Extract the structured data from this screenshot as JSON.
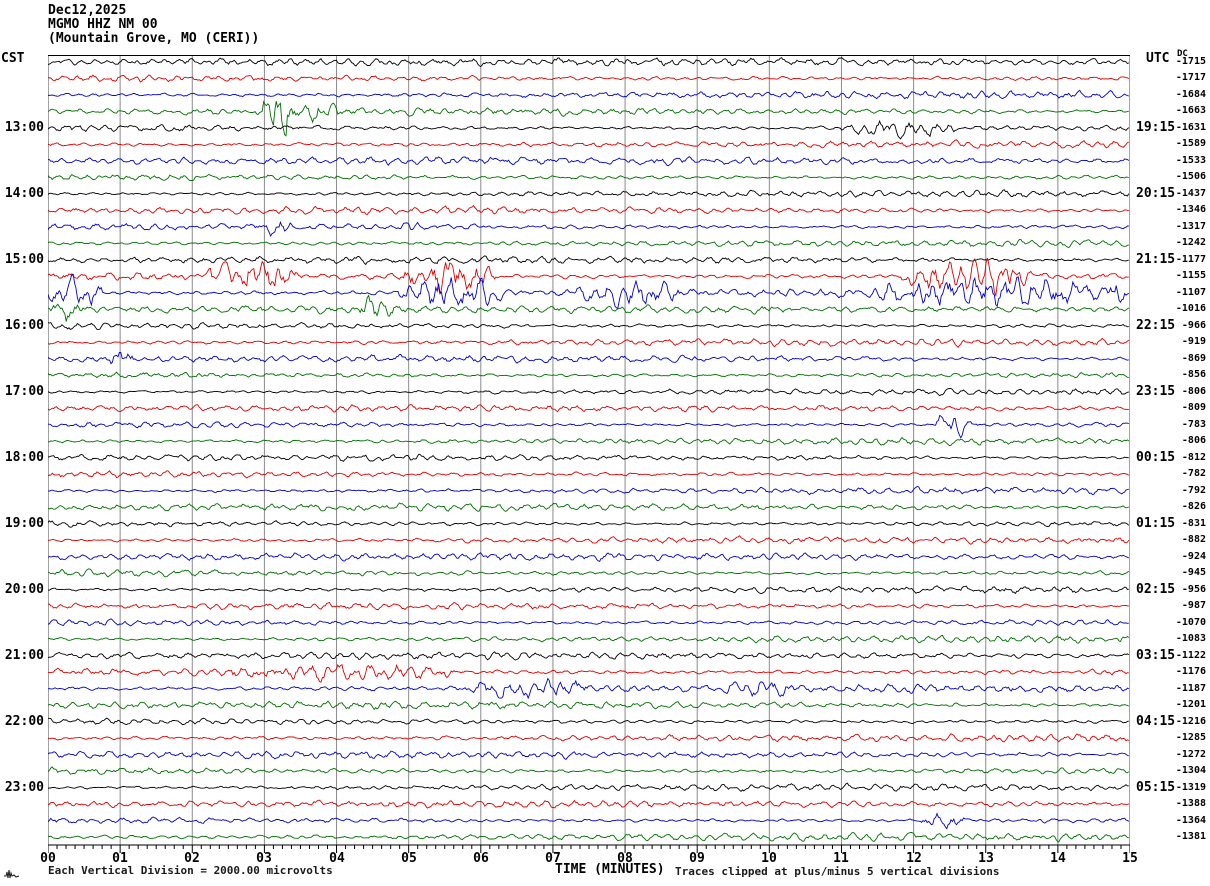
{
  "header": {
    "date": "Dec12,2025",
    "station": "MGMO HHZ NM 00",
    "location": "(Mountain Grove, MO (CERI))"
  },
  "axes": {
    "left_tz": "CST",
    "right_tz": "UTC",
    "dc_label": "DC",
    "x_title": "TIME (MINUTES)",
    "x_tick_labels": [
      "00",
      "01",
      "02",
      "03",
      "04",
      "05",
      "06",
      "07",
      "08",
      "09",
      "10",
      "11",
      "12",
      "13",
      "14",
      "15"
    ],
    "left_hour_labels": [
      {
        "row": 4,
        "label": "13:00"
      },
      {
        "row": 8,
        "label": "14:00"
      },
      {
        "row": 12,
        "label": "15:00"
      },
      {
        "row": 16,
        "label": "16:00"
      },
      {
        "row": 20,
        "label": "17:00"
      },
      {
        "row": 24,
        "label": "18:00"
      },
      {
        "row": 28,
        "label": "19:00"
      },
      {
        "row": 32,
        "label": "20:00"
      },
      {
        "row": 36,
        "label": "21:00"
      },
      {
        "row": 40,
        "label": "22:00"
      },
      {
        "row": 44,
        "label": "23:00"
      }
    ],
    "right_hour_labels": [
      {
        "row": 4,
        "label": "19:15"
      },
      {
        "row": 8,
        "label": "20:15"
      },
      {
        "row": 12,
        "label": "21:15"
      },
      {
        "row": 16,
        "label": "22:15"
      },
      {
        "row": 20,
        "label": "23:15"
      },
      {
        "row": 24,
        "label": "00:15"
      },
      {
        "row": 28,
        "label": "01:15"
      },
      {
        "row": 32,
        "label": "02:15"
      },
      {
        "row": 36,
        "label": "03:15"
      },
      {
        "row": 40,
        "label": "04:15"
      },
      {
        "row": 44,
        "label": "05:15"
      }
    ]
  },
  "footer": {
    "scale_note": "Each Vertical Division = 2000.00 microvolts",
    "clip_note": "Traces clipped at plus/minus 5 vertical divisions"
  },
  "colors": {
    "trace_cycle": [
      "#000000",
      "#e00000",
      "#0000d0",
      "#007000"
    ],
    "grid": "#8a8a8a",
    "border": "#444444",
    "squiggle": "#1a1a1a"
  },
  "chart_data": {
    "type": "line",
    "subtype": "helicorder-seismogram",
    "x_range_minutes": [
      0,
      15
    ],
    "minutes_per_row": 15,
    "rows_per_hour": 4,
    "start_time_cst": "12:00",
    "minor_ticks_per_minute": 8,
    "clip_divisions": 5,
    "microvolts_per_division": 2000.0,
    "rows": [
      {
        "cst": "",
        "utc": "",
        "value": -1715,
        "color": "black",
        "amp": 3.5,
        "events": []
      },
      {
        "cst": "",
        "utc": "",
        "value": -1717,
        "color": "red",
        "amp": 3.5,
        "events": []
      },
      {
        "cst": "",
        "utc": "",
        "value": -1684,
        "color": "blue",
        "amp": 3.4,
        "events": []
      },
      {
        "cst": "",
        "utc": "",
        "value": -1663,
        "color": "green",
        "amp": 3.2,
        "events": [
          [
            2.95,
            3.45,
            24
          ],
          [
            3.45,
            4.1,
            7
          ]
        ]
      },
      {
        "cst": "13:00",
        "utc": "19:15",
        "value": -1631,
        "color": "black",
        "amp": 3.2,
        "events": [
          [
            10.9,
            12.6,
            5
          ]
        ]
      },
      {
        "cst": "",
        "utc": "",
        "value": -1589,
        "color": "red",
        "amp": 3.5,
        "events": []
      },
      {
        "cst": "",
        "utc": "",
        "value": -1533,
        "color": "blue",
        "amp": 3.5,
        "events": []
      },
      {
        "cst": "",
        "utc": "",
        "value": -1506,
        "color": "green",
        "amp": 3.2,
        "events": []
      },
      {
        "cst": "14:00",
        "utc": "20:15",
        "value": -1437,
        "color": "black",
        "amp": 3.0,
        "events": []
      },
      {
        "cst": "",
        "utc": "",
        "value": -1346,
        "color": "red",
        "amp": 3.2,
        "events": []
      },
      {
        "cst": "",
        "utc": "",
        "value": -1317,
        "color": "blue",
        "amp": 3.4,
        "events": [
          [
            3.0,
            3.4,
            7
          ],
          [
            4.9,
            5.15,
            5
          ]
        ]
      },
      {
        "cst": "",
        "utc": "",
        "value": -1242,
        "color": "green",
        "amp": 3.2,
        "events": []
      },
      {
        "cst": "15:00",
        "utc": "21:15",
        "value": -1177,
        "color": "black",
        "amp": 3.2,
        "events": []
      },
      {
        "cst": "",
        "utc": "",
        "value": -1155,
        "color": "red",
        "amp": 3.8,
        "events": [
          [
            2.2,
            3.5,
            15
          ],
          [
            4.85,
            6.2,
            13
          ],
          [
            11.8,
            13.75,
            15
          ]
        ]
      },
      {
        "cst": "",
        "utc": "",
        "value": -1107,
        "color": "blue",
        "amp": 3.8,
        "events": [
          [
            0.0,
            0.75,
            11
          ],
          [
            4.85,
            6.4,
            13
          ],
          [
            7.3,
            8.8,
            9
          ],
          [
            11.4,
            14.6,
            14
          ],
          [
            14.6,
            15.0,
            9
          ]
        ]
      },
      {
        "cst": "",
        "utc": "",
        "value": -1016,
        "color": "green",
        "amp": 3.4,
        "events": [
          [
            0.0,
            0.5,
            9
          ],
          [
            4.3,
            4.8,
            10
          ]
        ]
      },
      {
        "cst": "16:00",
        "utc": "22:15",
        "value": -966,
        "color": "black",
        "amp": 3.2,
        "events": []
      },
      {
        "cst": "",
        "utc": "",
        "value": -919,
        "color": "red",
        "amp": 3.4,
        "events": []
      },
      {
        "cst": "",
        "utc": "",
        "value": -869,
        "color": "blue",
        "amp": 3.2,
        "events": [
          [
            0.85,
            1.2,
            7
          ]
        ]
      },
      {
        "cst": "",
        "utc": "",
        "value": -856,
        "color": "green",
        "amp": 3.0,
        "events": []
      },
      {
        "cst": "17:00",
        "utc": "23:15",
        "value": -806,
        "color": "black",
        "amp": 3.0,
        "events": []
      },
      {
        "cst": "",
        "utc": "",
        "value": -809,
        "color": "red",
        "amp": 3.0,
        "events": []
      },
      {
        "cst": "",
        "utc": "",
        "value": -783,
        "color": "blue",
        "amp": 3.0,
        "events": [
          [
            12.3,
            12.8,
            9
          ]
        ]
      },
      {
        "cst": "",
        "utc": "",
        "value": -806,
        "color": "green",
        "amp": 3.0,
        "events": []
      },
      {
        "cst": "18:00",
        "utc": "00:15",
        "value": -812,
        "color": "black",
        "amp": 3.0,
        "events": []
      },
      {
        "cst": "",
        "utc": "",
        "value": -782,
        "color": "red",
        "amp": 3.2,
        "events": []
      },
      {
        "cst": "",
        "utc": "",
        "value": -792,
        "color": "blue",
        "amp": 3.0,
        "events": []
      },
      {
        "cst": "",
        "utc": "",
        "value": -826,
        "color": "green",
        "amp": 3.2,
        "events": []
      },
      {
        "cst": "19:00",
        "utc": "01:15",
        "value": -831,
        "color": "black",
        "amp": 3.0,
        "events": []
      },
      {
        "cst": "",
        "utc": "",
        "value": -882,
        "color": "red",
        "amp": 3.0,
        "events": []
      },
      {
        "cst": "",
        "utc": "",
        "value": -924,
        "color": "blue",
        "amp": 3.2,
        "events": []
      },
      {
        "cst": "",
        "utc": "",
        "value": -945,
        "color": "green",
        "amp": 3.4,
        "events": []
      },
      {
        "cst": "20:00",
        "utc": "02:15",
        "value": -956,
        "color": "black",
        "amp": 3.0,
        "events": []
      },
      {
        "cst": "",
        "utc": "",
        "value": -987,
        "color": "red",
        "amp": 3.0,
        "events": []
      },
      {
        "cst": "",
        "utc": "",
        "value": -1070,
        "color": "blue",
        "amp": 3.2,
        "events": []
      },
      {
        "cst": "",
        "utc": "",
        "value": -1083,
        "color": "green",
        "amp": 3.2,
        "events": []
      },
      {
        "cst": "21:00",
        "utc": "03:15",
        "value": -1122,
        "color": "black",
        "amp": 3.2,
        "events": []
      },
      {
        "cst": "",
        "utc": "",
        "value": -1176,
        "color": "red",
        "amp": 3.6,
        "events": [
          [
            2.4,
            5.6,
            5
          ]
        ]
      },
      {
        "cst": "",
        "utc": "",
        "value": -1187,
        "color": "blue",
        "amp": 3.6,
        "events": [
          [
            5.8,
            7.6,
            6
          ],
          [
            9.3,
            10.4,
            5
          ]
        ]
      },
      {
        "cst": "",
        "utc": "",
        "value": -1201,
        "color": "green",
        "amp": 3.4,
        "events": []
      },
      {
        "cst": "22:00",
        "utc": "04:15",
        "value": -1216,
        "color": "black",
        "amp": 3.2,
        "events": []
      },
      {
        "cst": "",
        "utc": "",
        "value": -1285,
        "color": "red",
        "amp": 3.4,
        "events": []
      },
      {
        "cst": "",
        "utc": "",
        "value": -1272,
        "color": "blue",
        "amp": 3.2,
        "events": []
      },
      {
        "cst": "",
        "utc": "",
        "value": -1304,
        "color": "green",
        "amp": 3.4,
        "events": []
      },
      {
        "cst": "23:00",
        "utc": "05:15",
        "value": -1319,
        "color": "black",
        "amp": 3.0,
        "events": []
      },
      {
        "cst": "",
        "utc": "",
        "value": -1388,
        "color": "red",
        "amp": 3.2,
        "events": []
      },
      {
        "cst": "",
        "utc": "",
        "value": -1364,
        "color": "blue",
        "amp": 3.2,
        "events": [
          [
            12.1,
            12.7,
            5
          ]
        ]
      },
      {
        "cst": "",
        "utc": "",
        "value": -1381,
        "color": "green",
        "amp": 3.4,
        "events": []
      }
    ]
  }
}
